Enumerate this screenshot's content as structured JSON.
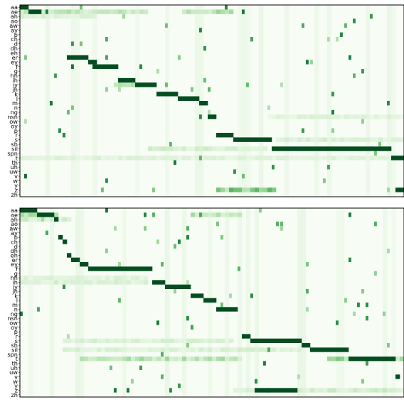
{
  "chart_data": {
    "type": "heatmap",
    "phonemes": [
      "aa",
      "ae",
      "ah",
      "ao",
      "aw",
      "ay",
      "b",
      "ch",
      "d",
      "dh",
      "eh",
      "er",
      "ey",
      "f",
      "g",
      "hh",
      "ih",
      "iy",
      "jh",
      "k",
      "l",
      "m",
      "n",
      "ng",
      "nsn",
      "ow",
      "oy",
      "p",
      "r",
      "s",
      "sh",
      "sil",
      "spn",
      "t",
      "th",
      "uh",
      "uw",
      "v",
      "w",
      "y",
      "z",
      "zh"
    ],
    "panels": [
      {
        "n_frames": 90,
        "colormap": [
          "#f7fcf5",
          "#c7e9c0",
          "#74c476",
          "#238b45",
          "#00441b"
        ],
        "path": [
          {
            "row": 0,
            "start": 0,
            "end": 2
          },
          {
            "row": 1,
            "start": 2,
            "end": 5
          },
          {
            "row": 11,
            "start": 11,
            "end": 16
          },
          {
            "row": 12,
            "start": 16,
            "end": 18
          },
          {
            "row": 13,
            "start": 17,
            "end": 23
          },
          {
            "row": 16,
            "start": 23,
            "end": 27
          },
          {
            "row": 17,
            "start": 27,
            "end": 32
          },
          {
            "row": 19,
            "start": 32,
            "end": 37
          },
          {
            "row": 20,
            "start": 37,
            "end": 42
          },
          {
            "row": 21,
            "start": 42,
            "end": 44
          },
          {
            "row": 24,
            "start": 44,
            "end": 46
          },
          {
            "row": 28,
            "start": 46,
            "end": 50
          },
          {
            "row": 29,
            "start": 50,
            "end": 59
          },
          {
            "row": 31,
            "start": 59,
            "end": 87
          },
          {
            "row": 33,
            "start": 87,
            "end": 90
          },
          {
            "row": 40,
            "start": 88,
            "end": 90
          }
        ],
        "bands": [
          {
            "row": 1,
            "start": 0,
            "end": 30,
            "level": 0.25
          },
          {
            "row": 1,
            "start": 38,
            "end": 50,
            "level": 0.3
          },
          {
            "row": 2,
            "start": 0,
            "end": 18,
            "level": 0.15
          },
          {
            "row": 29,
            "start": 60,
            "end": 90,
            "level": 0.15
          },
          {
            "row": 33,
            "start": 0,
            "end": 90,
            "level": 0.12
          },
          {
            "row": 40,
            "start": 46,
            "end": 60,
            "level": 0.45
          },
          {
            "row": 17,
            "start": 22,
            "end": 30,
            "level": 0.3
          },
          {
            "row": 24,
            "start": 58,
            "end": 90,
            "level": 0.12
          },
          {
            "row": 31,
            "start": 30,
            "end": 58,
            "level": 0.18
          }
        ]
      },
      {
        "n_frames": 90,
        "colormap": [
          "#f7fcf5",
          "#c7e9c0",
          "#74c476",
          "#238b45",
          "#00441b"
        ],
        "path": [
          {
            "row": 0,
            "start": 0,
            "end": 4
          },
          {
            "row": 1,
            "start": 4,
            "end": 8
          },
          {
            "row": 2,
            "start": 8,
            "end": 9
          },
          {
            "row": 6,
            "start": 9,
            "end": 10
          },
          {
            "row": 7,
            "start": 10,
            "end": 11
          },
          {
            "row": 10,
            "start": 11,
            "end": 12
          },
          {
            "row": 11,
            "start": 12,
            "end": 14
          },
          {
            "row": 12,
            "start": 14,
            "end": 16
          },
          {
            "row": 13,
            "start": 16,
            "end": 31
          },
          {
            "row": 16,
            "start": 31,
            "end": 34
          },
          {
            "row": 17,
            "start": 34,
            "end": 40
          },
          {
            "row": 19,
            "start": 40,
            "end": 43
          },
          {
            "row": 20,
            "start": 43,
            "end": 46
          },
          {
            "row": 22,
            "start": 46,
            "end": 51
          },
          {
            "row": 28,
            "start": 52,
            "end": 54
          },
          {
            "row": 29,
            "start": 54,
            "end": 66
          },
          {
            "row": 30,
            "start": 66,
            "end": 68
          },
          {
            "row": 31,
            "start": 68,
            "end": 77
          },
          {
            "row": 33,
            "start": 77,
            "end": 88
          },
          {
            "row": 37,
            "start": 88,
            "end": 89
          },
          {
            "row": 40,
            "start": 55,
            "end": 65
          }
        ],
        "bands": [
          {
            "row": 1,
            "start": 0,
            "end": 9,
            "level": 0.3
          },
          {
            "row": 2,
            "start": 0,
            "end": 12,
            "level": 0.2
          },
          {
            "row": 1,
            "start": 40,
            "end": 52,
            "level": 0.3
          },
          {
            "row": 33,
            "start": 14,
            "end": 52,
            "level": 0.3
          },
          {
            "row": 33,
            "start": 72,
            "end": 90,
            "level": 0.4
          },
          {
            "row": 40,
            "start": 50,
            "end": 90,
            "level": 0.2
          },
          {
            "row": 29,
            "start": 10,
            "end": 50,
            "level": 0.15
          },
          {
            "row": 31,
            "start": 10,
            "end": 66,
            "level": 0.15
          },
          {
            "row": 15,
            "start": 0,
            "end": 30,
            "level": 0.12
          },
          {
            "row": 16,
            "start": 0,
            "end": 30,
            "level": 0.15
          }
        ]
      }
    ]
  }
}
